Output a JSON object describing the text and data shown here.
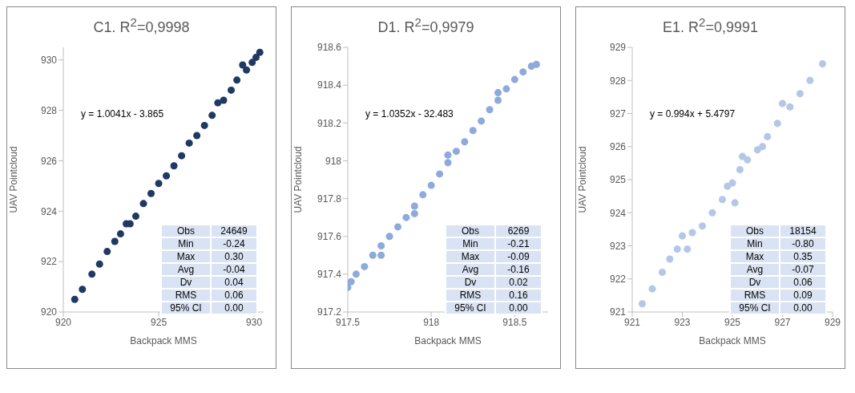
{
  "chart_data": [
    {
      "type": "scatter",
      "title": "C1. R$^{2}$=0,9998",
      "xlabel": "Backpack MMS",
      "ylabel": "UAV Pointcloud",
      "xlim": [
        920,
        930.5
      ],
      "xticks": [
        920,
        925,
        930
      ],
      "ylim": [
        920,
        930.5
      ],
      "yticks": [
        920,
        922,
        924,
        926,
        928,
        930
      ],
      "grid": false,
      "marker": "circle",
      "annotations": [
        "y = 1.0041x - 3.865",
        "Obs",
        "24649",
        "Min",
        "-0.24",
        "Max",
        "0.30",
        "Avg",
        "-0.04",
        "Dv",
        "0.04",
        "RMS",
        "0.06",
        "95% CI",
        "0.00"
      ],
      "series": [
        {
          "color": "#1f3864",
          "x": [
            920.6,
            921.0,
            921.5,
            921.9,
            922.3,
            922.7,
            923.0,
            923.3,
            923.5,
            923.8,
            924.2,
            924.6,
            925.0,
            925.4,
            925.8,
            926.2,
            926.6,
            927.0,
            927.4,
            927.8,
            928.1,
            928.4,
            928.8,
            929.1,
            929.4,
            929.6,
            929.9,
            930.1,
            930.3
          ],
          "values": [
            920.5,
            920.9,
            921.5,
            921.9,
            922.4,
            922.8,
            923.1,
            923.5,
            923.5,
            923.8,
            924.3,
            924.7,
            925.1,
            925.4,
            925.8,
            926.2,
            926.7,
            927.0,
            927.4,
            927.8,
            928.3,
            928.4,
            928.8,
            929.2,
            929.8,
            929.6,
            929.9,
            930.1,
            930.3
          ]
        }
      ]
    },
    {
      "type": "scatter",
      "title": "D1. R$^{2}$=0,9979",
      "xlabel": "Backpack MMS",
      "ylabel": "UAV Pointcloud",
      "xlim": [
        917.5,
        918.7
      ],
      "xticks": [
        917.5,
        918,
        918.5
      ],
      "ylim": [
        917.2,
        918.6
      ],
      "yticks": [
        917.2,
        917.4,
        917.6,
        917.8,
        918,
        918.2,
        918.4,
        918.6
      ],
      "grid": false,
      "marker": "circle",
      "annotations": [
        "y = 1.0352x - 32.483",
        "Obs",
        "6269",
        "Min",
        "-0.21",
        "Max",
        "-0.09",
        "Avg",
        "-0.16",
        "Dv",
        "0.02",
        "RMS",
        "0.16",
        "95% CI",
        "0.00"
      ],
      "series": [
        {
          "color": "#8eaadb",
          "x": [
            917.5,
            917.52,
            917.55,
            917.6,
            917.65,
            917.7,
            917.75,
            917.8,
            917.85,
            917.9,
            917.95,
            918.0,
            918.05,
            918.1,
            918.15,
            918.2,
            918.25,
            918.3,
            918.35,
            918.4,
            918.45,
            918.5,
            918.55,
            918.6,
            918.63,
            917.7,
            917.9,
            918.1,
            918.4
          ],
          "values": [
            917.33,
            917.36,
            917.4,
            917.44,
            917.5,
            917.55,
            917.6,
            917.65,
            917.7,
            917.76,
            917.82,
            917.87,
            917.93,
            917.99,
            918.05,
            918.1,
            918.16,
            918.21,
            918.27,
            918.32,
            918.38,
            918.43,
            918.47,
            918.5,
            918.51,
            917.5,
            917.72,
            918.03,
            918.36
          ]
        }
      ]
    },
    {
      "type": "scatter",
      "title": "E1. R$^{2}$=0,9991",
      "xlabel": "Backpack MMS",
      "ylabel": "UAV Pointcloud",
      "xlim": [
        921,
        929
      ],
      "xticks": [
        921,
        923,
        925,
        927,
        929
      ],
      "ylim": [
        921,
        929
      ],
      "yticks": [
        921,
        922,
        923,
        924,
        925,
        926,
        927,
        928,
        929
      ],
      "grid": false,
      "marker": "circle",
      "annotations": [
        "y = 0.994x + 5.4797",
        "Obs",
        "18154",
        "Min",
        "-0.80",
        "Max",
        "0.35",
        "Avg",
        "-0.07",
        "Dv",
        "0.06",
        "RMS",
        "0.09",
        "95% CI",
        "0.00"
      ],
      "series": [
        {
          "color": "#b4c7e7",
          "x": [
            921.4,
            921.8,
            922.2,
            922.5,
            922.8,
            923.0,
            923.2,
            923.4,
            923.8,
            924.2,
            924.6,
            924.8,
            925.0,
            925.1,
            925.3,
            925.4,
            925.6,
            926.0,
            926.2,
            926.4,
            926.8,
            927.0,
            927.3,
            927.7,
            928.1,
            928.6
          ],
          "values": [
            921.25,
            921.7,
            922.2,
            922.6,
            922.9,
            923.3,
            922.9,
            923.4,
            923.6,
            924.0,
            924.4,
            924.8,
            924.9,
            924.3,
            925.3,
            925.7,
            925.6,
            925.9,
            926.0,
            926.3,
            926.7,
            927.3,
            927.2,
            927.6,
            928.0,
            928.5
          ]
        }
      ]
    }
  ]
}
